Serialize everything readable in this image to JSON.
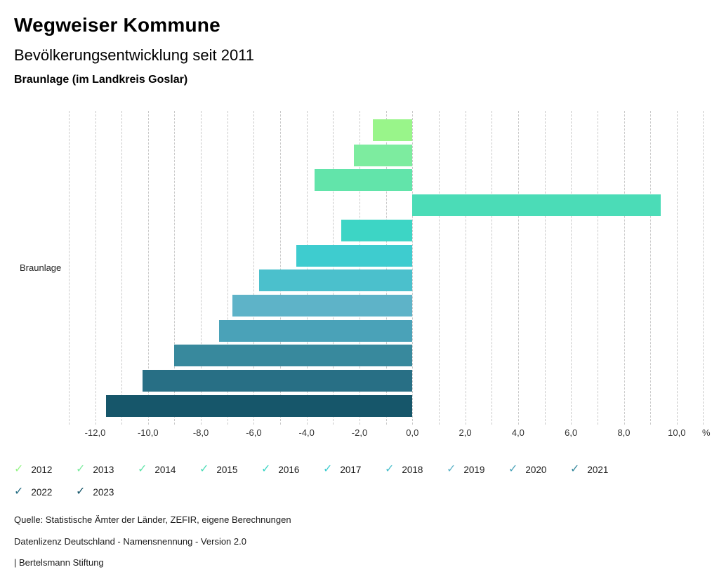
{
  "header": {
    "title": "Wegweiser Kommune",
    "subtitle": "Bevölkerungsentwicklung seit 2011",
    "region": "Braunlage (im Landkreis Goslar)"
  },
  "chart_data": {
    "type": "bar",
    "orientation": "horizontal",
    "title": "Bevölkerungsentwicklung seit 2011",
    "region": "Braunlage (im Landkreis Goslar)",
    "category": "Braunlage",
    "unit": "%",
    "xlim": [
      -13,
      11
    ],
    "gridline_step": 1,
    "grid": "dashed-vertical",
    "legend_position": "bottom",
    "ticks": [
      {
        "label": "-12,0",
        "value": -12
      },
      {
        "label": "-10,0",
        "value": -10
      },
      {
        "label": "-8,0",
        "value": -8
      },
      {
        "label": "-6,0",
        "value": -6
      },
      {
        "label": "-4,0",
        "value": -4
      },
      {
        "label": "-2,0",
        "value": -2
      },
      {
        "label": "0,0",
        "value": 0
      },
      {
        "label": "2,0",
        "value": 2
      },
      {
        "label": "4,0",
        "value": 4
      },
      {
        "label": "6,0",
        "value": 6
      },
      {
        "label": "8,0",
        "value": 8
      },
      {
        "label": "10,0",
        "value": 10
      }
    ],
    "series": [
      {
        "year": "2012",
        "value": -1.5,
        "color": "#99f58a"
      },
      {
        "year": "2013",
        "value": -2.2,
        "color": "#7dec9f"
      },
      {
        "year": "2014",
        "value": -3.7,
        "color": "#62e4aa"
      },
      {
        "year": "2015",
        "value": 9.4,
        "color": "#4bdcb7"
      },
      {
        "year": "2016",
        "value": -2.7,
        "color": "#3dd5c5"
      },
      {
        "year": "2017",
        "value": -4.4,
        "color": "#3ecccf"
      },
      {
        "year": "2018",
        "value": -5.8,
        "color": "#4bc0cc"
      },
      {
        "year": "2019",
        "value": -6.8,
        "color": "#5eb3c8"
      },
      {
        "year": "2020",
        "value": -7.3,
        "color": "#4aa2b8"
      },
      {
        "year": "2021",
        "value": -9.0,
        "color": "#38899d"
      },
      {
        "year": "2022",
        "value": -10.2,
        "color": "#286f85"
      },
      {
        "year": "2023",
        "value": -11.6,
        "color": "#16566a"
      }
    ]
  },
  "legend": {
    "check_icon": "✓"
  },
  "footer": {
    "source": "Quelle: Statistische Ämter der Länder, ZEFIR, eigene Berechnungen",
    "license": "Datenlizenz Deutschland - Namensnennung - Version 2.0",
    "attribution": "| Bertelsmann Stiftung"
  }
}
